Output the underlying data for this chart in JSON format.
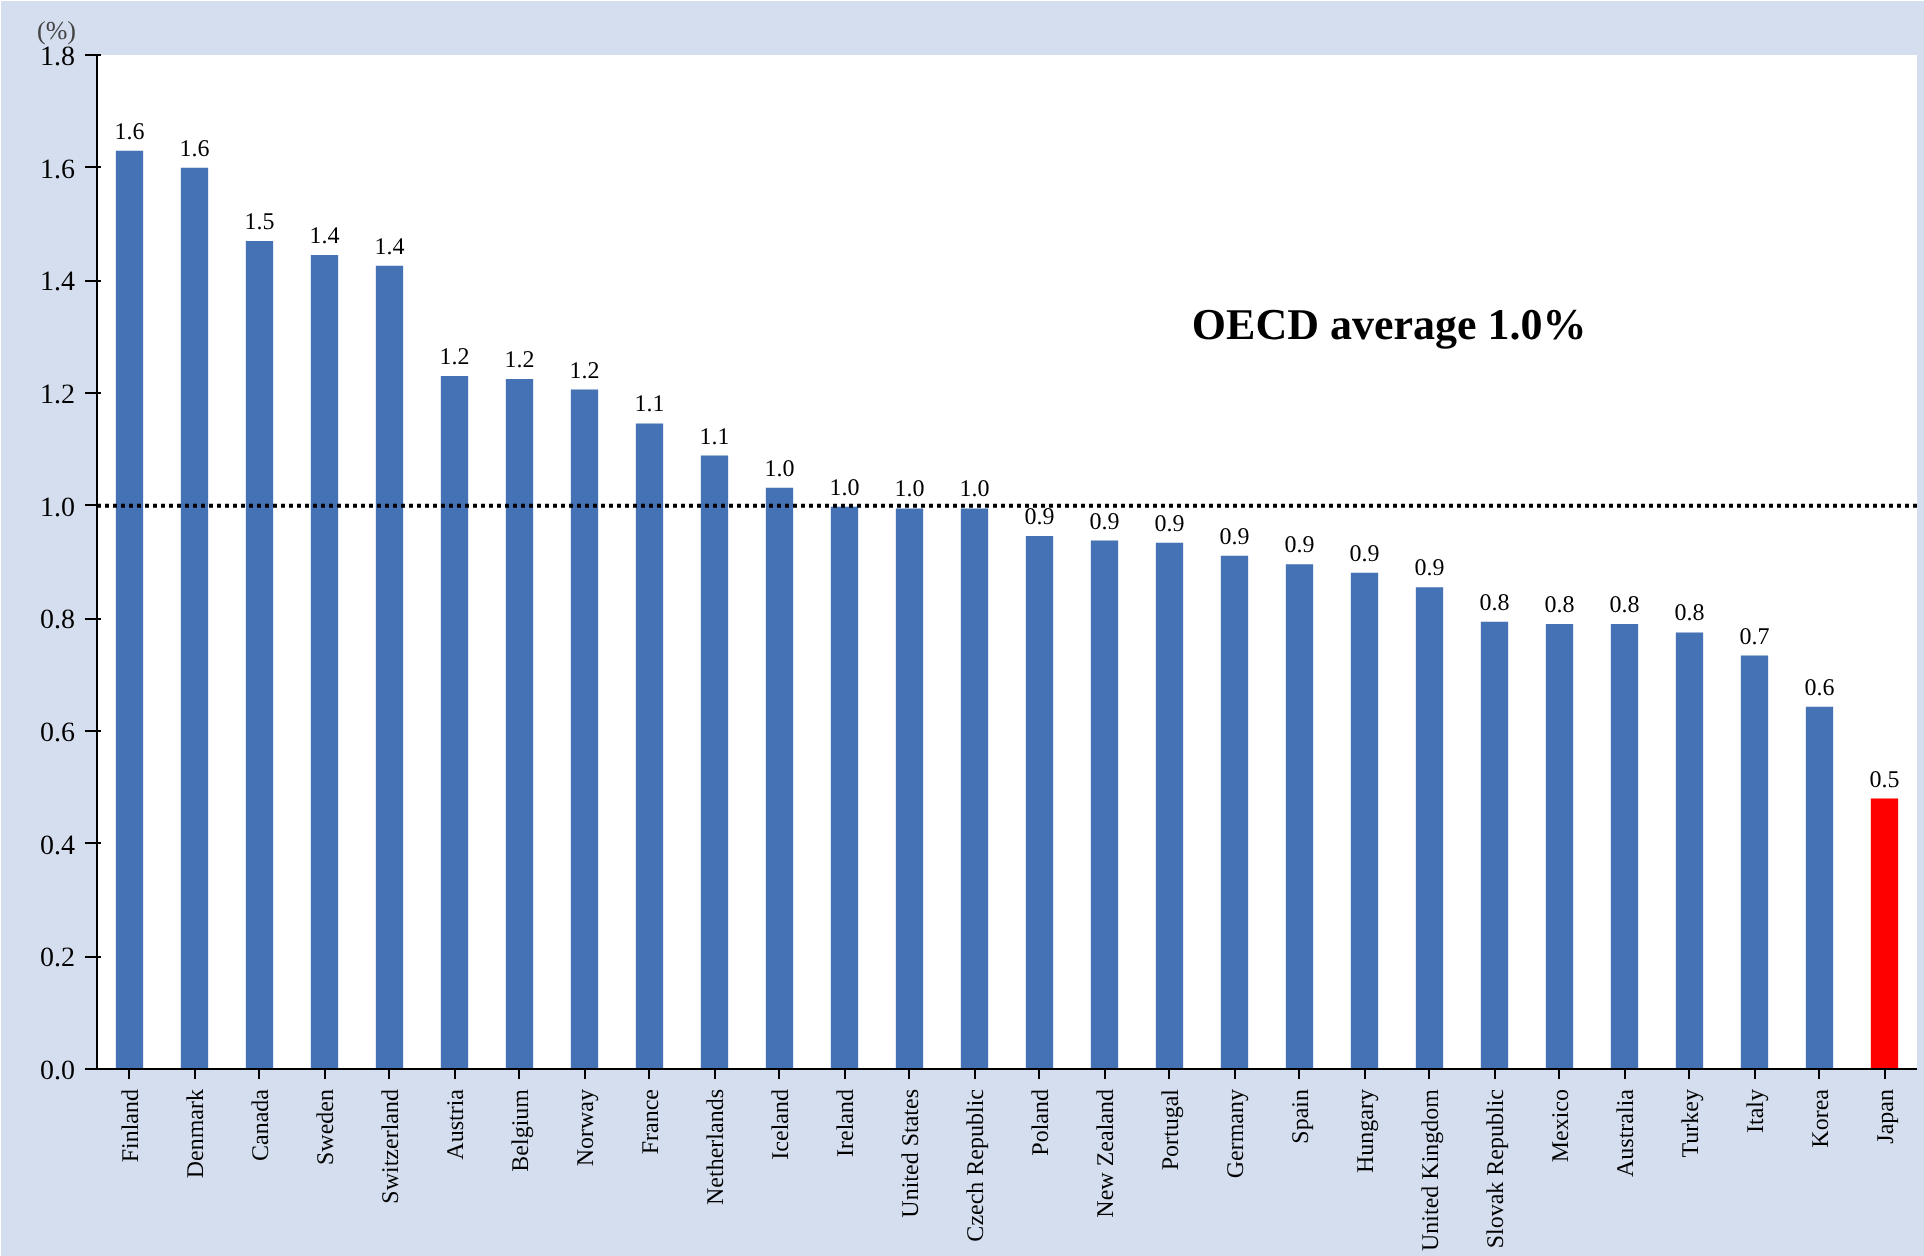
{
  "chart_data": {
    "type": "bar",
    "ylabel": "(%)",
    "categories": [
      "Finland",
      "Denmark",
      "Canada",
      "Sweden",
      "Switzerland",
      "Austria",
      "Belgium",
      "Norway",
      "France",
      "Netherlands",
      "Iceland",
      "Ireland",
      "United States",
      "Czech Republic",
      "Poland",
      "New Zealand",
      "Portugal",
      "Germany",
      "Spain",
      "Hungary",
      "United Kingdom",
      "Slovak Republic",
      "Mexico",
      "Australia",
      "Turkey",
      "Italy",
      "Korea",
      "Japan"
    ],
    "values": [
      1.63,
      1.6,
      1.47,
      1.445,
      1.426,
      1.23,
      1.225,
      1.206,
      1.146,
      1.089,
      1.032,
      0.998,
      0.995,
      0.995,
      0.946,
      0.938,
      0.934,
      0.911,
      0.896,
      0.881,
      0.855,
      0.794,
      0.79,
      0.79,
      0.775,
      0.734,
      0.643,
      0.48
    ],
    "value_labels": [
      "1.6",
      "1.6",
      "1.5",
      "1.4",
      "1.4",
      "1.2",
      "1.2",
      "1.2",
      "1.1",
      "1.1",
      "1.0",
      "1.0",
      "1.0",
      "1.0",
      "0.9",
      "0.9",
      "0.9",
      "0.9",
      "0.9",
      "0.9",
      "0.9",
      "0.8",
      "0.8",
      "0.8",
      "0.8",
      "0.7",
      "0.6",
      "0.5"
    ],
    "colors": [
      "#4472b4",
      "#4472b4",
      "#4472b4",
      "#4472b4",
      "#4472b4",
      "#4472b4",
      "#4472b4",
      "#4472b4",
      "#4472b4",
      "#4472b4",
      "#4472b4",
      "#4472b4",
      "#4472b4",
      "#4472b4",
      "#4472b4",
      "#4472b4",
      "#4472b4",
      "#4472b4",
      "#4472b4",
      "#4472b4",
      "#4472b4",
      "#4472b4",
      "#4472b4",
      "#4472b4",
      "#4472b4",
      "#4472b4",
      "#4472b4",
      "#ff0000"
    ],
    "ylim": [
      0,
      1.8
    ],
    "yticks": [
      {
        "value": 0,
        "label": "0.0"
      },
      {
        "value": 0.2,
        "label": "0.2"
      },
      {
        "value": 0.4,
        "label": "0.4"
      },
      {
        "value": 0.6,
        "label": "0.6"
      },
      {
        "value": 0.8,
        "label": "0.8"
      },
      {
        "value": 1.0,
        "label": "1.0"
      },
      {
        "value": 1.2,
        "label": "1.2"
      },
      {
        "value": 1.4,
        "label": "1.4"
      },
      {
        "value": 1.6,
        "label": "1.6"
      },
      {
        "value": 1.8,
        "label": "1.8"
      }
    ],
    "ref_lines": [
      {
        "axis": "y",
        "value": 1.0,
        "color": "#000000",
        "line_style": "dotted"
      }
    ],
    "annotations": [
      "OECD average 1.0%"
    ],
    "grid": false
  }
}
